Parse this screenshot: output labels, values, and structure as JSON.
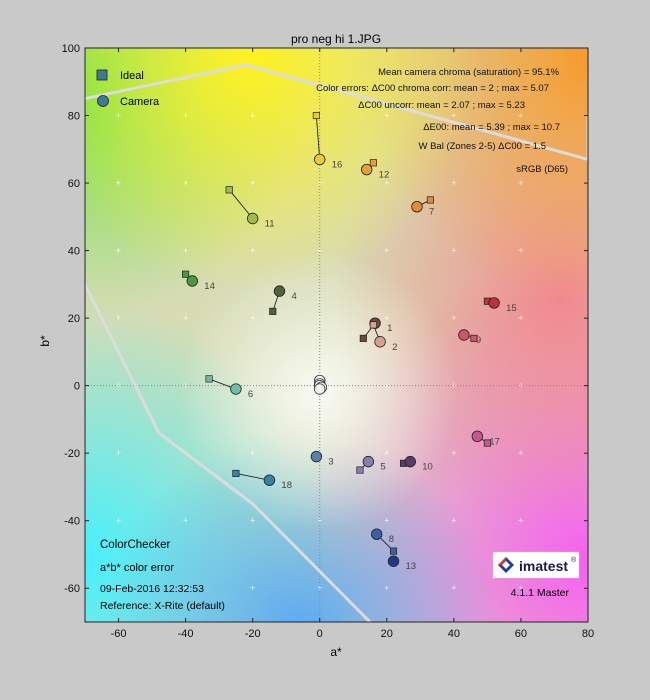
{
  "figure": {
    "title": "pro neg hi 1.JPG"
  },
  "annotations": {
    "line1": "Mean camera chroma (saturation) = 95.1%",
    "line2": "Color errors:  ΔC00 chroma corr: mean = 2 ; max = 5.07",
    "line3": "ΔC00 uncorr: mean = 2.07 ; max = 5.23",
    "line4": "ΔE00: mean = 5.39 ; max = 10.7",
    "line5": "W Bal (Zones 2-5)  ΔC00 = 1.5",
    "gamut_label": "sRGB (D65)"
  },
  "info_block": {
    "name": "ColorChecker",
    "subtitle": "a*b* color error",
    "timestamp": "09-Feb-2016 12:32:53",
    "reference": "Reference: X-Rite (default)"
  },
  "brand": {
    "logo_text": "imatest",
    "version": "4.1.1 Master"
  },
  "colors": {
    "figure_bg": "#c9c9c9",
    "gamut_line": "#dcdcdc"
  },
  "chart_data": {
    "type": "scatter",
    "title": "pro neg hi 1.JPG",
    "xlabel": "a*",
    "ylabel": "b*",
    "xlim": [
      -70,
      80
    ],
    "ylim": [
      -70,
      100
    ],
    "xticks": [
      -60,
      -40,
      -20,
      0,
      20,
      40,
      60,
      80
    ],
    "yticks": [
      -60,
      -40,
      -20,
      0,
      20,
      40,
      60,
      80,
      100
    ],
    "legend": {
      "position": "top-left",
      "entries": [
        "Ideal",
        "Camera"
      ]
    },
    "series": [
      {
        "name": "Ideal",
        "marker": "square"
      },
      {
        "name": "Camera",
        "marker": "circle"
      }
    ],
    "patches": [
      {
        "id": 1,
        "label": "1",
        "ideal": [
          13,
          14
        ],
        "camera": [
          16.5,
          18.5
        ],
        "color": "#6e4a3a"
      },
      {
        "id": 2,
        "label": "2",
        "ideal": [
          16,
          18
        ],
        "camera": [
          18,
          13
        ],
        "color": "#d9a08e"
      },
      {
        "id": 3,
        "label": "3",
        "ideal": null,
        "camera": [
          -1,
          -21
        ],
        "color": "#5c7fa5"
      },
      {
        "id": 4,
        "label": "4",
        "ideal": [
          -14,
          22
        ],
        "camera": [
          -12,
          28
        ],
        "color": "#4f6436"
      },
      {
        "id": 5,
        "label": "5",
        "ideal": [
          12,
          -25
        ],
        "camera": [
          14.5,
          -22.5
        ],
        "color": "#8480b0"
      },
      {
        "id": 6,
        "label": "6",
        "ideal": [
          -33,
          2
        ],
        "camera": [
          -25,
          -1
        ],
        "color": "#6fbfa8"
      },
      {
        "id": 7,
        "label": "7",
        "ideal": [
          33,
          55
        ],
        "camera": [
          29,
          53
        ],
        "color": "#e08a3a"
      },
      {
        "id": 8,
        "label": "8",
        "ideal": [
          22,
          -49
        ],
        "camera": [
          17,
          -44
        ],
        "color": "#3f5fa5"
      },
      {
        "id": 9,
        "label": "9",
        "ideal": [
          46,
          14
        ],
        "camera": [
          43,
          15
        ],
        "color": "#d0556a"
      },
      {
        "id": 10,
        "label": "10",
        "ideal": [
          25,
          -23
        ],
        "camera": [
          27,
          -22.5
        ],
        "color": "#5a3c6a"
      },
      {
        "id": 11,
        "label": "11",
        "ideal": [
          -27,
          58
        ],
        "camera": [
          -20,
          49.5
        ],
        "color": "#a0bc48"
      },
      {
        "id": 12,
        "label": "12",
        "ideal": [
          16,
          66
        ],
        "camera": [
          14,
          64
        ],
        "color": "#e8a02e"
      },
      {
        "id": 13,
        "label": "13",
        "ideal": [
          22,
          -52
        ],
        "camera": [
          22,
          -52
        ],
        "color": "#1f3a8a"
      },
      {
        "id": 14,
        "label": "14",
        "ideal": [
          -40,
          33
        ],
        "camera": [
          -38,
          31
        ],
        "color": "#4e9646"
      },
      {
        "id": 15,
        "label": "15",
        "ideal": [
          50,
          25
        ],
        "camera": [
          52,
          24.5
        ],
        "color": "#bb3240"
      },
      {
        "id": 16,
        "label": "16",
        "ideal": [
          -1,
          80
        ],
        "camera": [
          0,
          67
        ],
        "color": "#eccb2a"
      },
      {
        "id": 17,
        "label": "17",
        "ideal": [
          50,
          -17
        ],
        "camera": [
          47,
          -15
        ],
        "color": "#c9578d"
      },
      {
        "id": 18,
        "label": "18",
        "ideal": [
          -25,
          -26
        ],
        "camera": [
          -15,
          -28
        ],
        "color": "#2c87a8"
      }
    ],
    "neutrals": [
      [
        0,
        1.5
      ],
      [
        0,
        0.5
      ],
      [
        0,
        0
      ],
      [
        0.5,
        -0.5
      ],
      [
        0,
        -1
      ]
    ],
    "gamut_polygon": [
      [
        -70,
        85
      ],
      [
        -22,
        95
      ],
      [
        80,
        67
      ],
      [
        80,
        80
      ]
    ],
    "gamut_lower": [
      [
        -70,
        30
      ],
      [
        -48,
        -14
      ],
      [
        -20,
        -35
      ],
      [
        20,
        -75
      ]
    ],
    "grid": true
  }
}
